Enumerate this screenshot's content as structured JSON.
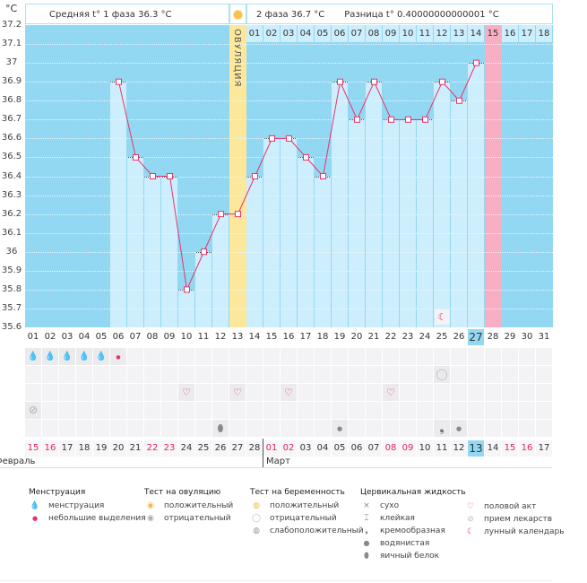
{
  "header": {
    "celsius": "°C",
    "phase1": "Средняя t° 1 фаза  36.3 °C",
    "phase2": "2 фаза  36.7 °C",
    "diff": "Разница t° 0.40000000000001 °C",
    "ovulation": "ОВУЛЯЦИЯ"
  },
  "y_ticks": [
    "37.2",
    "37.1",
    "37",
    "36.9",
    "36.8",
    "36.7",
    "36.6",
    "36.5",
    "36.4",
    "36.3",
    "36.2",
    "36.1",
    "36",
    "35.9",
    "35.8",
    "35.7",
    "35.6"
  ],
  "chart_data": {
    "type": "line",
    "ylim": [
      35.6,
      37.2
    ],
    "x": [
      "01",
      "02",
      "03",
      "04",
      "05",
      "06",
      "07",
      "08",
      "09",
      "10",
      "11",
      "12",
      "13",
      "14",
      "15",
      "16",
      "17",
      "18",
      "19",
      "20",
      "21",
      "22",
      "23",
      "24",
      "25",
      "26",
      "27",
      "28",
      "29",
      "30",
      "31"
    ],
    "values": [
      null,
      null,
      null,
      null,
      null,
      36.9,
      36.5,
      36.4,
      36.4,
      35.8,
      36.0,
      36.2,
      36.2,
      36.4,
      36.6,
      36.6,
      36.5,
      36.4,
      36.9,
      36.7,
      36.9,
      36.7,
      36.7,
      36.7,
      36.9,
      36.8,
      37.0,
      null,
      null,
      null,
      null
    ],
    "ovulation_day": "13",
    "today": "27",
    "expected_period_day": "28"
  },
  "phase2_days": [
    "01",
    "02",
    "03",
    "04",
    "05",
    "06",
    "07",
    "08",
    "09",
    "10",
    "11",
    "12",
    "13",
    "14",
    "15",
    "16",
    "17",
    "18"
  ],
  "dates": [
    "15",
    "16",
    "17",
    "18",
    "19",
    "20",
    "21",
    "22",
    "23",
    "24",
    "25",
    "26",
    "27",
    "28",
    "01",
    "02",
    "03",
    "04",
    "05",
    "06",
    "07",
    "08",
    "09",
    "10",
    "11",
    "12",
    "13",
    "14",
    "15",
    "16",
    "17"
  ],
  "red_dates": [
    0,
    1,
    7,
    8,
    14,
    15,
    21,
    22,
    28,
    29
  ],
  "months": {
    "feb": "Февраль",
    "mar": "Март"
  },
  "icon_rows": [
    {
      "0": "menstruation",
      "1": "menstruation",
      "2": "menstruation",
      "3": "menstruation",
      "4": "menstruation",
      "5": "spotting"
    },
    {
      "24": "pregnancy-negative"
    },
    {
      "9": "heart",
      "12": "heart",
      "15": "heart",
      "21": "heart"
    },
    {
      "0": "pill"
    },
    {
      "11": "egg-white",
      "18": "watery",
      "24": "creamy",
      "25": "watery"
    }
  ],
  "colors": {
    "chart_bg": "#93d8f3",
    "bar": "#cdeefc",
    "line": "#e8336b",
    "ovulation": "#fde79a",
    "period": "#f9afc3",
    "today": "#93d8f3"
  },
  "legend": {
    "menstruation": {
      "title": "Менструация",
      "items": [
        "менструация",
        "небольшие выделения"
      ]
    },
    "ovulation_test": {
      "title": "Тест на овуляцию",
      "items": [
        "положительный",
        "отрицательный"
      ]
    },
    "pregnancy_test": {
      "title": "Тест на беременность",
      "items": [
        "положительный",
        "отрицательный",
        "слабоположительный"
      ]
    },
    "cervical": {
      "title": "Цервикальная жидкость",
      "items": [
        "сухо",
        "клейкая",
        "кремообразная",
        "водянистая",
        "яичный белок"
      ]
    },
    "other": {
      "items": [
        "половой акт",
        "прием лекарств",
        "лунный календарь"
      ]
    }
  }
}
